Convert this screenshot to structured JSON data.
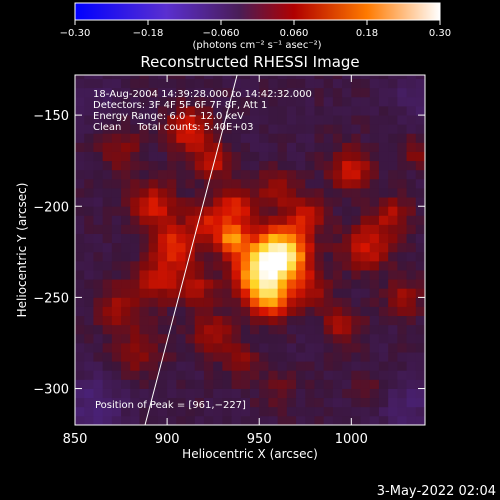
{
  "chart_data": {
    "type": "heatmap",
    "title": "Reconstructed RHESSI Image",
    "xlabel": "Heliocentric X (arcsec)",
    "ylabel": "Heliocentric Y (arcsec)",
    "xlim": [
      850,
      1040
    ],
    "ylim": [
      -320,
      -128
    ],
    "x_ticks": [
      850,
      900,
      950,
      1000
    ],
    "y_ticks": [
      -150,
      -200,
      -250,
      -300
    ],
    "x_tick_labels": [
      "850",
      "900",
      "950",
      "1000"
    ],
    "y_tick_labels": [
      "−150",
      "−200",
      "−250",
      "−300"
    ],
    "colorbar": {
      "range": [
        -0.3,
        0.3
      ],
      "ticks": [
        -0.3,
        -0.18,
        -0.06,
        0.06,
        0.18,
        0.3
      ],
      "tick_labels": [
        "−0.30",
        "−0.18",
        "−0.060",
        "0.060",
        "0.18",
        "0.30"
      ],
      "unit_label": "(photons cm⁻² s⁻¹ asec⁻²)"
    },
    "info_lines": [
      "18‑Aug‑2004 14:39:28.000 to 14:42:32.000",
      "Detectors: 3F 4F 5F 6F 7F 8F, Att 1",
      "Energy Range: 6.0 − 12.0 keV",
      "Clean     Total counts: 5.40E+03"
    ],
    "peak_label": "Position of Peak = [961,−227]",
    "peak": [
      961,
      -227
    ],
    "limb_line": [
      [
        888,
        -320
      ],
      [
        938,
        -128
      ]
    ],
    "blobs": [
      {
        "x": 961,
        "y": -227,
        "a": 0.3,
        "s": 10
      },
      {
        "x": 948,
        "y": -237,
        "a": 0.16,
        "s": 9
      },
      {
        "x": 956,
        "y": -250,
        "a": 0.16,
        "s": 8
      },
      {
        "x": 935,
        "y": -218,
        "a": 0.17,
        "s": 6
      },
      {
        "x": 922,
        "y": -208,
        "a": 0.09,
        "s": 7
      },
      {
        "x": 938,
        "y": -200,
        "a": 0.1,
        "s": 7
      },
      {
        "x": 905,
        "y": -222,
        "a": 0.11,
        "s": 8
      },
      {
        "x": 895,
        "y": -240,
        "a": 0.08,
        "s": 8
      },
      {
        "x": 915,
        "y": -245,
        "a": 0.08,
        "s": 7
      },
      {
        "x": 893,
        "y": -200,
        "a": 0.09,
        "s": 9
      },
      {
        "x": 875,
        "y": -255,
        "a": 0.06,
        "s": 9
      },
      {
        "x": 885,
        "y": -280,
        "a": 0.05,
        "s": 9
      },
      {
        "x": 925,
        "y": -270,
        "a": 0.07,
        "s": 8
      },
      {
        "x": 940,
        "y": -285,
        "a": 0.05,
        "s": 7
      },
      {
        "x": 912,
        "y": -158,
        "a": 0.1,
        "s": 8
      },
      {
        "x": 925,
        "y": -175,
        "a": 0.08,
        "s": 7
      },
      {
        "x": 960,
        "y": -190,
        "a": 0.07,
        "s": 7
      },
      {
        "x": 975,
        "y": -205,
        "a": 0.08,
        "s": 7
      },
      {
        "x": 978,
        "y": -245,
        "a": 0.06,
        "s": 7
      },
      {
        "x": 1000,
        "y": -180,
        "a": 0.09,
        "s": 8
      },
      {
        "x": 1008,
        "y": -222,
        "a": 0.09,
        "s": 9
      },
      {
        "x": 1022,
        "y": -205,
        "a": 0.07,
        "s": 7
      },
      {
        "x": 995,
        "y": -265,
        "a": 0.07,
        "s": 7
      },
      {
        "x": 1028,
        "y": -250,
        "a": 0.06,
        "s": 7
      },
      {
        "x": 875,
        "y": -168,
        "a": 0.05,
        "s": 8
      },
      {
        "x": 1012,
        "y": -300,
        "a": 0.03,
        "s": 7
      },
      {
        "x": 960,
        "y": -300,
        "a": 0.03,
        "s": 7
      },
      {
        "x": 1035,
        "y": -170,
        "a": 0.04,
        "s": 6
      },
      {
        "x": 860,
        "y": -310,
        "a": -0.05,
        "s": 12
      },
      {
        "x": 1030,
        "y": -310,
        "a": -0.04,
        "s": 12
      },
      {
        "x": 1035,
        "y": -140,
        "a": -0.03,
        "s": 10
      },
      {
        "x": 860,
        "y": -140,
        "a": -0.02,
        "s": 10
      }
    ]
  },
  "footer": {
    "date": "3‑May‑2022 02:04"
  }
}
